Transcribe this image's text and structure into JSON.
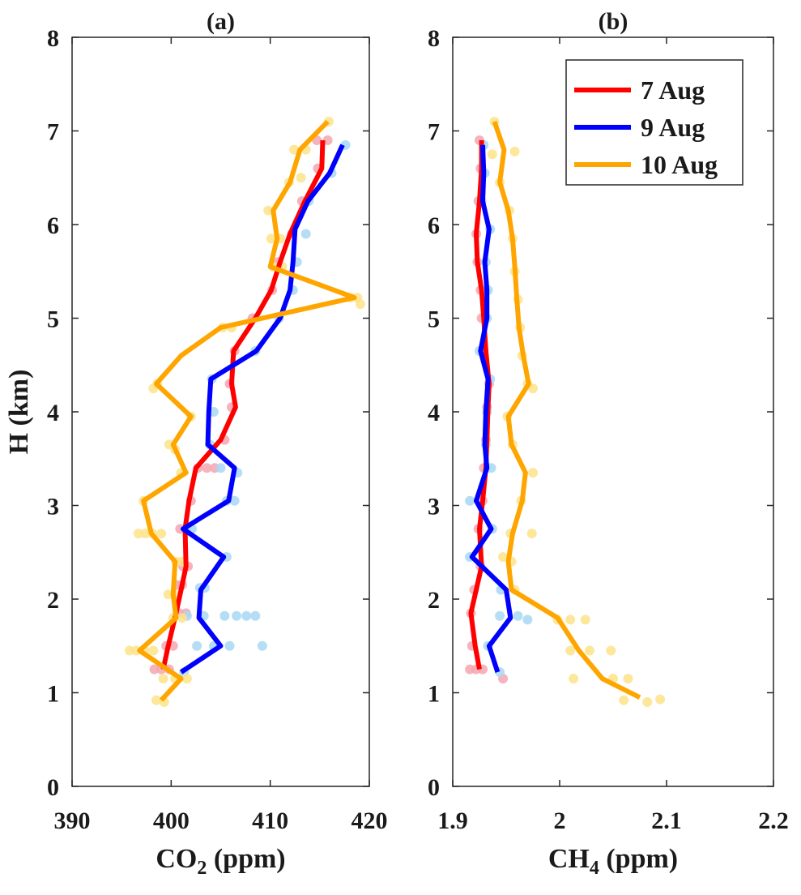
{
  "chart_data": [
    {
      "type": "line",
      "title": "(a)",
      "xlabel": "CO",
      "xlabel_sub": "2",
      "xlabel_suffix": " (ppm)",
      "ylabel": "H (km)",
      "xlim": [
        390,
        420
      ],
      "ylim": [
        0,
        8
      ],
      "xticks": [
        "390",
        "400",
        "410",
        "420"
      ],
      "yticks": [
        "0",
        "1",
        "2",
        "3",
        "4",
        "5",
        "6",
        "7",
        "8"
      ],
      "grid": false,
      "series": [
        {
          "name": "7 Aug",
          "color": "#ff0000",
          "scatter_color": "#f4a6b0",
          "y": [
            1.25,
            1.5,
            1.85,
            2.1,
            2.35,
            2.75,
            3.05,
            3.4,
            3.7,
            4.05,
            4.3,
            4.65,
            5.0,
            5.3,
            5.6,
            5.9,
            6.25,
            6.6,
            6.9
          ],
          "x": [
            399.2,
            399.7,
            400.5,
            401.0,
            401.5,
            401.4,
            401.8,
            402.5,
            405.0,
            406.5,
            406.1,
            406.3,
            408.5,
            410.1,
            411.0,
            412.0,
            413.5,
            415.2,
            415.3
          ],
          "scatter": [
            [
              398.3,
              1.25
            ],
            [
              399.0,
              1.25
            ],
            [
              399.8,
              1.25
            ],
            [
              400.2,
              1.5
            ],
            [
              399.5,
              1.5
            ],
            [
              400.8,
              1.85
            ],
            [
              401.5,
              1.85
            ],
            [
              401.1,
              2.15
            ],
            [
              400.6,
              2.15
            ],
            [
              401.7,
              2.35
            ],
            [
              401.2,
              2.35
            ],
            [
              401.5,
              2.75
            ],
            [
              400.9,
              2.75
            ],
            [
              402.0,
              3.05
            ],
            [
              402.7,
              3.4
            ],
            [
              403.6,
              3.4
            ],
            [
              404.4,
              3.4
            ],
            [
              405.4,
              3.7
            ],
            [
              406.1,
              4.05
            ],
            [
              405.9,
              4.3
            ],
            [
              406.4,
              4.65
            ],
            [
              408.2,
              5.0
            ],
            [
              410.2,
              5.3
            ],
            [
              410.8,
              5.6
            ],
            [
              412.2,
              5.9
            ],
            [
              413.2,
              6.25
            ],
            [
              414.8,
              6.6
            ],
            [
              414.7,
              6.9
            ],
            [
              415.8,
              6.9
            ]
          ]
        },
        {
          "name": "9 Aug",
          "color": "#0000ff",
          "scatter_color": "#a8d8f4",
          "y": [
            1.22,
            1.5,
            1.8,
            2.1,
            2.45,
            2.75,
            3.05,
            3.4,
            3.65,
            4.0,
            4.35,
            4.65,
            5.0,
            5.3,
            5.6,
            5.95,
            6.25,
            6.55,
            6.85
          ],
          "x": [
            401.0,
            405.0,
            402.8,
            403.0,
            405.3,
            401.2,
            405.8,
            406.4,
            403.7,
            403.8,
            404.0,
            408.6,
            411.0,
            412.0,
            412.3,
            412.5,
            413.8,
            416.0,
            417.3
          ],
          "scatter": [
            [
              401.3,
              1.22
            ],
            [
              402.6,
              1.5
            ],
            [
              404.3,
              1.5
            ],
            [
              405.9,
              1.5
            ],
            [
              409.2,
              1.5
            ],
            [
              401.6,
              1.82
            ],
            [
              403.3,
              1.82
            ],
            [
              405.4,
              1.82
            ],
            [
              406.6,
              1.82
            ],
            [
              407.6,
              1.82
            ],
            [
              408.5,
              1.82
            ],
            [
              402.9,
              2.12
            ],
            [
              403.4,
              2.12
            ],
            [
              405.6,
              2.45
            ],
            [
              401.5,
              2.75
            ],
            [
              402.1,
              2.75
            ],
            [
              405.6,
              3.05
            ],
            [
              406.4,
              3.05
            ],
            [
              406.7,
              3.35
            ],
            [
              405.0,
              3.4
            ],
            [
              403.9,
              3.65
            ],
            [
              404.3,
              4.0
            ],
            [
              404.1,
              4.35
            ],
            [
              408.5,
              4.65
            ],
            [
              410.9,
              5.0
            ],
            [
              412.3,
              5.3
            ],
            [
              412.7,
              5.6
            ],
            [
              413.6,
              5.9
            ],
            [
              413.9,
              6.25
            ],
            [
              416.2,
              6.55
            ],
            [
              417.6,
              6.85
            ]
          ]
        },
        {
          "name": "10 Aug",
          "color": "#ffa500",
          "scatter_color": "#fde389",
          "y": [
            0.92,
            1.15,
            1.45,
            1.8,
            2.05,
            2.4,
            2.7,
            3.05,
            3.35,
            3.65,
            3.95,
            4.3,
            4.6,
            4.9,
            5.22,
            5.55,
            5.85,
            6.15,
            6.45,
            6.8,
            7.1
          ],
          "x": [
            399.0,
            401.0,
            396.8,
            400.5,
            400.2,
            400.4,
            398.0,
            397.2,
            401.5,
            400.2,
            402.0,
            398.5,
            401.0,
            405.0,
            418.5,
            410.0,
            410.7,
            410.3,
            412.0,
            413.0,
            415.8
          ],
          "scatter": [
            [
              398.5,
              0.92
            ],
            [
              399.3,
              0.9
            ],
            [
              400.4,
              1.15
            ],
            [
              401.6,
              1.15
            ],
            [
              399.2,
              1.15
            ],
            [
              395.8,
              1.45
            ],
            [
              396.5,
              1.45
            ],
            [
              397.3,
              1.45
            ],
            [
              398.2,
              1.45
            ],
            [
              400.2,
              1.8
            ],
            [
              401.1,
              1.8
            ],
            [
              400.3,
              2.05
            ],
            [
              399.7,
              2.05
            ],
            [
              400.5,
              2.4
            ],
            [
              401.1,
              2.4
            ],
            [
              396.7,
              2.7
            ],
            [
              397.4,
              2.7
            ],
            [
              398.1,
              2.7
            ],
            [
              399.0,
              2.7
            ],
            [
              397.2,
              3.05
            ],
            [
              401.0,
              3.35
            ],
            [
              400.4,
              3.6
            ],
            [
              399.8,
              3.65
            ],
            [
              402.0,
              3.95
            ],
            [
              398.2,
              4.25
            ],
            [
              398.6,
              4.3
            ],
            [
              405.2,
              4.9
            ],
            [
              406.1,
              4.9
            ],
            [
              418.1,
              5.22
            ],
            [
              418.8,
              5.22
            ],
            [
              419.1,
              5.15
            ],
            [
              410.3,
              5.55
            ],
            [
              411.2,
              5.55
            ],
            [
              410.1,
              5.85
            ],
            [
              411.0,
              5.85
            ],
            [
              409.8,
              6.15
            ],
            [
              411.9,
              6.45
            ],
            [
              413.1,
              6.5
            ],
            [
              412.4,
              6.8
            ],
            [
              413.6,
              6.8
            ],
            [
              415.9,
              7.1
            ]
          ]
        }
      ]
    },
    {
      "type": "line",
      "title": "(b)",
      "xlabel": "CH",
      "xlabel_sub": "4",
      "xlabel_suffix": " (ppm)",
      "ylabel": "",
      "xlim": [
        1.9,
        2.2
      ],
      "ylim": [
        0,
        8
      ],
      "xticks": [
        "1.9",
        "2",
        "2.1",
        "2.2"
      ],
      "yticks": [
        "0",
        "1",
        "2",
        "3",
        "4",
        "5",
        "6",
        "7",
        "8"
      ],
      "grid": false,
      "legend": "top-right",
      "series": [
        {
          "name": "7 Aug",
          "color": "#ff0000",
          "scatter_color": "#f4a6b0",
          "y": [
            1.25,
            1.5,
            1.85,
            2.1,
            2.35,
            2.75,
            3.05,
            3.4,
            3.7,
            4.05,
            4.3,
            4.65,
            5.0,
            5.3,
            5.6,
            5.9,
            6.25,
            6.6,
            6.9
          ],
          "x": [
            1.925,
            1.921,
            1.917,
            1.922,
            1.927,
            1.925,
            1.928,
            1.931,
            1.932,
            1.933,
            1.934,
            1.931,
            1.929,
            1.927,
            1.923,
            1.922,
            1.925,
            1.927,
            1.927
          ],
          "scatter": [
            [
              1.916,
              1.25
            ],
            [
              1.922,
              1.25
            ],
            [
              1.928,
              1.25
            ],
            [
              1.947,
              1.15
            ],
            [
              1.918,
              1.5
            ],
            [
              1.917,
              1.85
            ],
            [
              1.92,
              2.1
            ],
            [
              1.926,
              2.35
            ],
            [
              1.924,
              2.75
            ],
            [
              1.928,
              3.05
            ],
            [
              1.929,
              3.4
            ],
            [
              1.931,
              3.7
            ],
            [
              1.932,
              4.05
            ],
            [
              1.934,
              4.3
            ],
            [
              1.929,
              4.65
            ],
            [
              1.927,
              5.0
            ],
            [
              1.926,
              5.3
            ],
            [
              1.923,
              5.6
            ],
            [
              1.922,
              5.9
            ],
            [
              1.924,
              6.25
            ],
            [
              1.926,
              6.6
            ],
            [
              1.925,
              6.9
            ]
          ]
        },
        {
          "name": "9 Aug",
          "color": "#0000ff",
          "scatter_color": "#a8d8f4",
          "y": [
            1.22,
            1.5,
            1.8,
            2.1,
            2.45,
            2.75,
            3.05,
            3.4,
            3.65,
            4.0,
            4.35,
            4.65,
            5.0,
            5.3,
            5.6,
            5.95,
            6.25,
            6.55,
            6.85
          ],
          "x": [
            1.942,
            1.934,
            1.954,
            1.95,
            1.918,
            1.936,
            1.922,
            1.932,
            1.93,
            1.931,
            1.933,
            1.926,
            1.932,
            1.932,
            1.93,
            1.934,
            1.928,
            1.929,
            1.928
          ],
          "scatter": [
            [
              1.944,
              1.22
            ],
            [
              1.933,
              1.5
            ],
            [
              1.944,
              1.82
            ],
            [
              1.961,
              1.82
            ],
            [
              1.97,
              1.78
            ],
            [
              1.945,
              2.1
            ],
            [
              1.916,
              2.45
            ],
            [
              1.937,
              2.75
            ],
            [
              1.916,
              3.05
            ],
            [
              1.936,
              3.4
            ],
            [
              1.931,
              3.65
            ],
            [
              1.932,
              4.0
            ],
            [
              1.935,
              4.35
            ],
            [
              1.925,
              4.65
            ],
            [
              1.932,
              5.0
            ],
            [
              1.933,
              5.3
            ],
            [
              1.931,
              5.6
            ],
            [
              1.935,
              5.95
            ],
            [
              1.927,
              6.25
            ],
            [
              1.93,
              6.55
            ],
            [
              1.929,
              6.85
            ]
          ]
        },
        {
          "name": "10 Aug",
          "color": "#ffa500",
          "scatter_color": "#fde389",
          "y": [
            0.95,
            1.15,
            1.45,
            1.8,
            2.1,
            2.4,
            2.7,
            3.05,
            3.35,
            3.65,
            3.95,
            4.3,
            4.6,
            4.9,
            5.2,
            5.55,
            5.85,
            6.15,
            6.45,
            6.8,
            7.1
          ],
          "x": [
            2.075,
            2.04,
            2.018,
            1.998,
            1.955,
            1.952,
            1.956,
            1.965,
            1.968,
            1.955,
            1.952,
            1.971,
            1.966,
            1.962,
            1.96,
            1.958,
            1.956,
            1.952,
            1.944,
            1.948,
            1.939
          ],
          "scatter": [
            [
              2.06,
              0.92
            ],
            [
              2.082,
              0.9
            ],
            [
              2.094,
              0.93
            ],
            [
              2.05,
              1.15
            ],
            [
              2.064,
              1.15
            ],
            [
              2.013,
              1.15
            ],
            [
              2.01,
              1.45
            ],
            [
              2.028,
              1.45
            ],
            [
              2.048,
              1.45
            ],
            [
              1.998,
              1.78
            ],
            [
              2.01,
              1.78
            ],
            [
              2.024,
              1.78
            ],
            [
              1.958,
              2.1
            ],
            [
              1.955,
              2.4
            ],
            [
              1.947,
              2.45
            ],
            [
              1.954,
              2.7
            ],
            [
              1.974,
              2.7
            ],
            [
              1.964,
              3.05
            ],
            [
              1.975,
              3.35
            ],
            [
              1.956,
              3.65
            ],
            [
              1.951,
              3.95
            ],
            [
              1.97,
              4.3
            ],
            [
              1.975,
              4.25
            ],
            [
              1.965,
              4.6
            ],
            [
              1.963,
              4.9
            ],
            [
              1.961,
              5.2
            ],
            [
              1.958,
              5.5
            ],
            [
              1.956,
              5.85
            ],
            [
              1.953,
              6.15
            ],
            [
              1.944,
              6.45
            ],
            [
              1.958,
              6.78
            ],
            [
              1.937,
              6.75
            ],
            [
              1.939,
              7.1
            ]
          ]
        }
      ]
    }
  ]
}
